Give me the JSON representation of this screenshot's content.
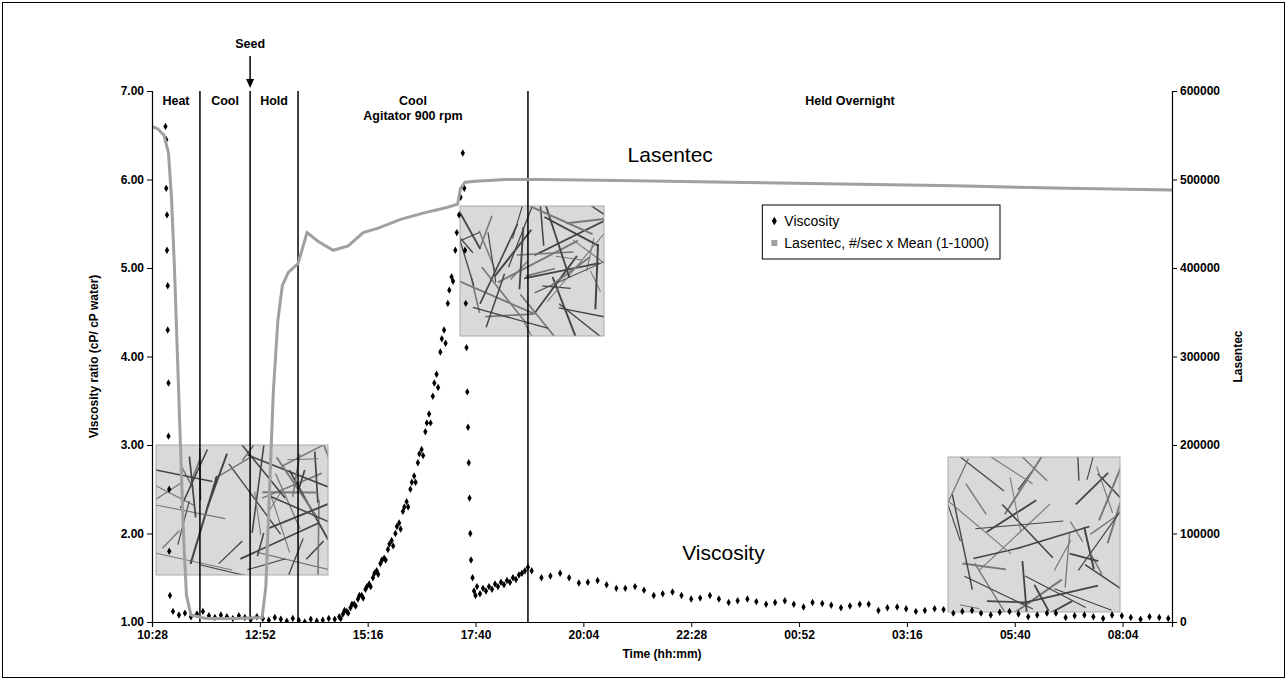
{
  "chart_data": {
    "type": "scatter",
    "x_label": "Time (hh:mm)",
    "y_label": "Viscosity ratio (cP/ cP water)",
    "y2_label": "Lasentec",
    "xlim": [
      628,
      1990
    ],
    "xticks": [
      {
        "value": 628,
        "label": "10:28"
      },
      {
        "value": 772,
        "label": "12:52"
      },
      {
        "value": 916,
        "label": "15:16"
      },
      {
        "value": 1060,
        "label": "17:40"
      },
      {
        "value": 1204,
        "label": "20:04"
      },
      {
        "value": 1348,
        "label": "22:28"
      },
      {
        "value": 1492,
        "label": "00:52"
      },
      {
        "value": 1636,
        "label": "03:16"
      },
      {
        "value": 1780,
        "label": "05:40"
      },
      {
        "value": 1924,
        "label": "08:04"
      }
    ],
    "ylim": [
      1,
      7
    ],
    "yticks": [
      {
        "value": 1,
        "label": "1.00"
      },
      {
        "value": 2,
        "label": "2.00"
      },
      {
        "value": 3,
        "label": "3.00"
      },
      {
        "value": 4,
        "label": "4.00"
      },
      {
        "value": 5,
        "label": "5.00"
      },
      {
        "value": 6,
        "label": "6.00"
      },
      {
        "value": 7,
        "label": "7.00"
      }
    ],
    "y2lim": [
      0,
      600000
    ],
    "y2ticks": [
      0,
      100000,
      200000,
      300000,
      400000,
      500000,
      600000
    ],
    "grid": false,
    "legend": "upper right",
    "phases": [
      {
        "label": [
          "Heat"
        ],
        "start": 628,
        "end": 692
      },
      {
        "label": [
          "Cool"
        ],
        "start": 692,
        "end": 759
      },
      {
        "label": [
          "Hold"
        ],
        "start": 759,
        "end": 823
      },
      {
        "label": [
          "Cool",
          "Agitator 900 rpm"
        ],
        "start": 823,
        "end": 1130
      },
      {
        "label": [
          "Held Overnight"
        ],
        "start": 1130,
        "end": 1990
      }
    ],
    "seed": {
      "label": "Seed",
      "x": 759
    },
    "annotations": [
      {
        "text": "Lasentec",
        "x": 1320,
        "y2": 520000
      },
      {
        "text": "Viscosity",
        "x": 1391,
        "y": 1.7
      }
    ],
    "series": [
      {
        "name": "Viscosity",
        "type": "scatter",
        "marker": "diamond",
        "color": "#000000",
        "x": [
          646,
          647,
          647,
          648,
          648,
          649,
          649,
          650,
          650,
          651,
          651,
          652,
          656,
          664,
          672,
          680,
          688,
          696,
          704,
          712,
          720,
          728,
          736,
          744,
          752,
          760,
          768,
          776,
          784,
          792,
          800,
          808,
          816,
          824,
          832,
          840,
          848,
          856,
          864,
          872,
          878,
          883,
          888,
          893,
          898,
          903,
          908,
          913,
          918,
          923,
          928,
          933,
          938,
          943,
          948,
          953,
          958,
          963,
          968,
          973,
          978,
          983,
          988,
          993,
          998,
          1003,
          1008,
          1013,
          1018,
          1023,
          1028,
          1033,
          1038,
          1043,
          880,
          885,
          890,
          895,
          900,
          905,
          910,
          915,
          920,
          925,
          930,
          935,
          940,
          945,
          950,
          955,
          960,
          965,
          970,
          975,
          980,
          985,
          990,
          995,
          1000,
          1005,
          1010,
          1015,
          1020,
          1025,
          1030,
          1035,
          1040,
          1045,
          1046,
          1047,
          1048,
          1049,
          1050,
          1051,
          1052,
          1053,
          1054,
          1056,
          1058,
          1060,
          1062,
          1066,
          1070,
          1074,
          1078,
          1082,
          1086,
          1090,
          1094,
          1098,
          1102,
          1106,
          1110,
          1114,
          1118,
          1122,
          1126,
          1130,
          1135,
          1160,
          1185,
          1210,
          1235,
          1260,
          1285,
          1310,
          1335,
          1360,
          1385,
          1410,
          1435,
          1460,
          1485,
          1510,
          1535,
          1560,
          1585,
          1610,
          1635,
          1660,
          1685,
          1710,
          1735,
          1760,
          1785,
          1810,
          1835,
          1860,
          1885,
          1910,
          1935,
          1960,
          1985,
          1148,
          1173,
          1198,
          1223,
          1248,
          1273,
          1298,
          1323,
          1348,
          1373,
          1398,
          1423,
          1448,
          1473,
          1498,
          1523,
          1548,
          1573,
          1598,
          1623,
          1648,
          1673,
          1698,
          1723,
          1748,
          1773,
          1798,
          1823,
          1848,
          1873,
          1898,
          1923,
          1948,
          1973
        ],
        "values": [
          6.6,
          6.45,
          5.9,
          5.6,
          5.2,
          4.8,
          4.3,
          3.7,
          3.1,
          2.5,
          1.8,
          1.3,
          1.12,
          1.08,
          1.1,
          1.06,
          1.09,
          1.12,
          1.07,
          1.05,
          1.08,
          1.06,
          1.04,
          1.07,
          1.05,
          1.03,
          1.06,
          1.04,
          1.02,
          1.05,
          1.03,
          1.01,
          1.04,
          1.02,
          1.0,
          1.03,
          1.01,
          1.02,
          1.04,
          1.03,
          1.06,
          1.09,
          1.12,
          1.16,
          1.2,
          1.26,
          1.3,
          1.37,
          1.43,
          1.5,
          1.58,
          1.66,
          1.72,
          1.82,
          1.92,
          2.0,
          2.12,
          2.25,
          2.36,
          2.5,
          2.65,
          2.8,
          2.95,
          3.15,
          3.35,
          3.55,
          3.8,
          4.05,
          4.3,
          4.6,
          4.9,
          5.2,
          5.6,
          6.3,
          1.04,
          1.13,
          1.1,
          1.2,
          1.18,
          1.3,
          1.27,
          1.4,
          1.4,
          1.55,
          1.54,
          1.7,
          1.7,
          1.88,
          1.86,
          2.08,
          2.05,
          2.3,
          2.3,
          2.58,
          2.58,
          2.9,
          2.88,
          3.25,
          3.25,
          3.7,
          3.65,
          4.2,
          4.15,
          4.75,
          4.85,
          5.4,
          5.8,
          5.9,
          5.2,
          4.6,
          4.1,
          3.6,
          3.2,
          2.8,
          2.4,
          2.0,
          1.7,
          1.5,
          1.35,
          1.3,
          1.4,
          1.32,
          1.38,
          1.35,
          1.4,
          1.37,
          1.43,
          1.4,
          1.45,
          1.42,
          1.47,
          1.45,
          1.5,
          1.48,
          1.53,
          1.55,
          1.58,
          1.62,
          1.58,
          1.52,
          1.5,
          1.45,
          1.42,
          1.38,
          1.36,
          1.32,
          1.3,
          1.27,
          1.26,
          1.24,
          1.23,
          1.22,
          1.2,
          1.22,
          1.19,
          1.18,
          1.2,
          1.16,
          1.15,
          1.13,
          1.14,
          1.12,
          1.1,
          1.11,
          1.09,
          1.08,
          1.1,
          1.07,
          1.06,
          1.08,
          1.05,
          1.06,
          1.04,
          1.5,
          1.55,
          1.44,
          1.47,
          1.38,
          1.4,
          1.3,
          1.34,
          1.26,
          1.3,
          1.22,
          1.26,
          1.2,
          1.24,
          1.17,
          1.21,
          1.16,
          1.2,
          1.13,
          1.17,
          1.12,
          1.15,
          1.1,
          1.13,
          1.08,
          1.12,
          1.06,
          1.1,
          1.05,
          1.08,
          1.04,
          1.07,
          1.03,
          1.05
        ]
      },
      {
        "name": "Lasentec, #/sec x Mean (1-1000)",
        "type": "line",
        "axis": "y2",
        "color": "#a0a0a0",
        "x": [
          628,
          636,
          644,
          650,
          654,
          658,
          662,
          666,
          670,
          674,
          680,
          700,
          740,
          775,
          780,
          785,
          790,
          796,
          802,
          810,
          823,
          835,
          850,
          870,
          890,
          910,
          930,
          960,
          990,
          1020,
          1036,
          1040,
          1046,
          1060,
          1100,
          1150,
          1250,
          1400,
          1550,
          1700,
          1850,
          1990
        ],
        "values": [
          560000,
          557000,
          550000,
          530000,
          480000,
          400000,
          300000,
          200000,
          100000,
          30000,
          8000,
          4000,
          4000,
          5000,
          40000,
          150000,
          260000,
          340000,
          380000,
          395000,
          405000,
          440000,
          430000,
          420000,
          425000,
          440000,
          445000,
          455000,
          462000,
          468000,
          472000,
          490000,
          497000,
          498000,
          500000,
          500000,
          499000,
          497000,
          495000,
          493000,
          490000,
          488000
        ]
      }
    ]
  }
}
